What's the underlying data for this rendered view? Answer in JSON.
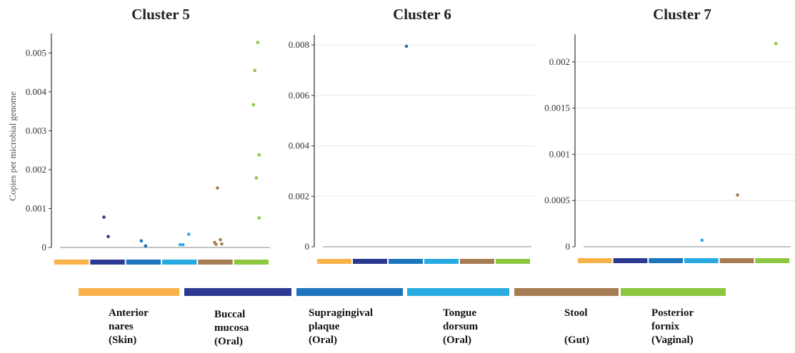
{
  "ylabel": "Copies per microbial genome",
  "groups": [
    {
      "name": "Anterior nares",
      "site": "(Skin)",
      "label_lines": [
        "Anterior",
        "nares",
        "(Skin)"
      ],
      "color": "#F9B14A"
    },
    {
      "name": "Buccal mucosa",
      "site": "(Oral)",
      "label_lines": [
        "Buccal",
        "mucosa",
        "(Oral)"
      ],
      "color": "#2B3990"
    },
    {
      "name": "Supragingival plaque",
      "site": "(Oral)",
      "label_lines": [
        "Supragingival",
        "plaque",
        "(Oral)"
      ],
      "color": "#1C75BC"
    },
    {
      "name": "Tongue dorsum",
      "site": "(Oral)",
      "label_lines": [
        "Tongue",
        "dorsum",
        "(Oral)"
      ],
      "color": "#29ABE2"
    },
    {
      "name": "Stool",
      "site": "(Gut)",
      "label_lines": [
        "Stool",
        "",
        "(Gut)"
      ],
      "color": "#A67C52"
    },
    {
      "name": "Posterior fornix",
      "site": "(Vaginal)",
      "label_lines": [
        "Posterior",
        "fornix",
        "(Vaginal)"
      ],
      "color": "#8DC63F"
    }
  ],
  "chart_data": [
    {
      "type": "scatter",
      "title": "Cluster 5",
      "ylabel": "Copies per microbial genome",
      "ylim": [
        0,
        0.0055
      ],
      "yticks": [
        0,
        0.001,
        0.002,
        0.003,
        0.004,
        0.005
      ],
      "ytick_labels": [
        "0",
        "0.001",
        "0.002",
        "0.003",
        "0.004",
        "0.005"
      ],
      "grid": false,
      "series": [
        {
          "name": "Anterior nares (Skin)",
          "values": []
        },
        {
          "name": "Buccal mucosa (Oral)",
          "values": [
            0.00078,
            0.00028
          ]
        },
        {
          "name": "Supragingival plaque (Oral)",
          "values": [
            0.00017,
            4e-05
          ]
        },
        {
          "name": "Tongue dorsum (Oral)",
          "values": [
            0.00034,
            7e-05,
            7e-05
          ]
        },
        {
          "name": "Stool (Gut)",
          "values": [
            0.00153,
            0.0002,
            0.00013,
            9e-05,
            8e-05
          ]
        },
        {
          "name": "Posterior fornix (Vaginal)",
          "values": [
            0.00527,
            0.00455,
            0.00367,
            0.00238,
            0.00179,
            0.00076
          ]
        }
      ]
    },
    {
      "type": "scatter",
      "title": "Cluster 6",
      "ylabel": "",
      "ylim": [
        0,
        0.0084
      ],
      "yticks": [
        0,
        0.002,
        0.004,
        0.006,
        0.008
      ],
      "ytick_labels": [
        "0",
        "0.002",
        "0.004",
        "0.006",
        "0.008"
      ],
      "grid": true,
      "series": [
        {
          "name": "Anterior nares (Skin)",
          "values": []
        },
        {
          "name": "Buccal mucosa (Oral)",
          "values": []
        },
        {
          "name": "Supragingival plaque (Oral)",
          "values": [
            0.00795
          ]
        },
        {
          "name": "Tongue dorsum (Oral)",
          "values": []
        },
        {
          "name": "Stool (Gut)",
          "values": []
        },
        {
          "name": "Posterior fornix (Vaginal)",
          "values": []
        }
      ]
    },
    {
      "type": "scatter",
      "title": "Cluster 7",
      "ylabel": "",
      "ylim": [
        0,
        0.0023
      ],
      "yticks": [
        0,
        0.0005,
        0.001,
        0.0015,
        0.002
      ],
      "ytick_labels": [
        "0",
        "0.0005",
        "0.001",
        "0.0015",
        "0.002"
      ],
      "grid": true,
      "series": [
        {
          "name": "Anterior nares (Skin)",
          "values": []
        },
        {
          "name": "Buccal mucosa (Oral)",
          "values": []
        },
        {
          "name": "Supragingival plaque (Oral)",
          "values": []
        },
        {
          "name": "Tongue dorsum (Oral)",
          "values": [
            7e-05
          ]
        },
        {
          "name": "Stool (Gut)",
          "values": [
            0.00056
          ]
        },
        {
          "name": "Posterior fornix (Vaginal)",
          "values": [
            0.0022
          ]
        }
      ]
    }
  ]
}
